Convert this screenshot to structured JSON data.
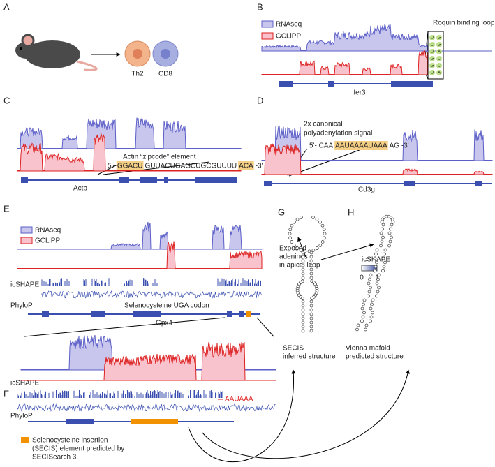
{
  "panels": {
    "a": "A",
    "b": "B",
    "c": "C",
    "d": "D",
    "e": "E",
    "f": "F",
    "g": "G",
    "h": "H"
  },
  "a": {
    "cells": [
      "Th2",
      "CD8"
    ]
  },
  "b": {
    "legend": [
      "RNAseq",
      "GCLiPP"
    ],
    "annotation": "Roquin binding loop",
    "gene": "Ier3",
    "hairpin": [
      "U",
      "C",
      "U",
      "G",
      "G",
      "U",
      "G",
      "G",
      "A",
      "C",
      "C",
      "A"
    ]
  },
  "c": {
    "annotation": "Actin “zipcode” element",
    "sequence": [
      "5'-",
      "GGACU",
      "GUUACUGAGCUGCGUUUU",
      "ACA",
      "-3'"
    ],
    "gene": "Actb"
  },
  "d": {
    "annotation": [
      "2x canonical",
      "polyadenylation signal"
    ],
    "sequence": [
      "5'- CAA",
      "AAUAAAAUAAA",
      "AG -3'"
    ],
    "gene": "Cd3g"
  },
  "e": {
    "legend": [
      "RNAseq",
      "GCLiPP"
    ],
    "tracks": [
      "icSHAPE",
      "PhyloP"
    ],
    "annotation": "Selenocysteine UGA codon",
    "gene": "Gpx4"
  },
  "f": {
    "tracks": [
      "icSHAPE",
      "PhyloP"
    ],
    "signal": "AAUAAA",
    "legend": [
      "Selenocysteine insertion",
      "(SECIS) element predicted by",
      "SECISearch 3"
    ]
  },
  "g": {
    "annotation": [
      "Exposed",
      "adenines",
      "in apical loop"
    ],
    "caption": [
      "SECIS",
      "inferred structure"
    ]
  },
  "h": {
    "scale_title": "icSHAPE",
    "scale": [
      0,
      1
    ],
    "caption": [
      "Vienna mafold",
      "predicted structure"
    ]
  }
}
